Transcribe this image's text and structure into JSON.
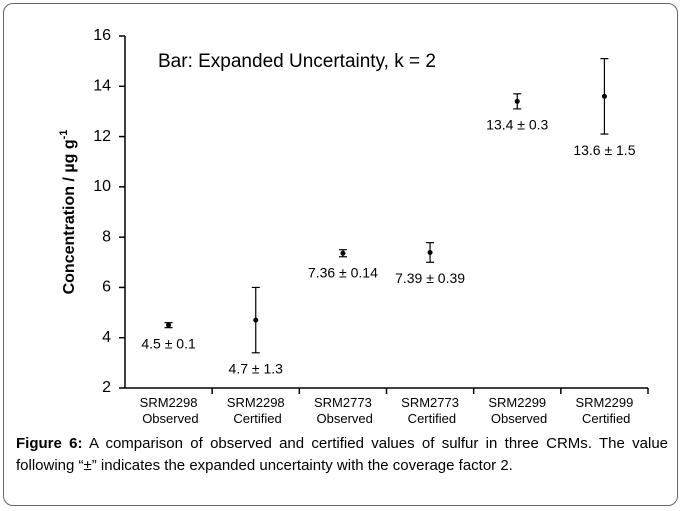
{
  "chart_data": {
    "type": "errorbar",
    "annotation": "Bar: Expanded Uncertainty, k = 2",
    "y_label": "Concentration / µg g",
    "y_label_superscript": "-1",
    "categories": [
      "SRM2298 Observed",
      "SRM2298 Certified",
      "SRM2773 Observed",
      "SRM2773 Certified",
      "SRM2299 Observed",
      "SRM2299 Certified"
    ],
    "values": [
      4.5,
      4.7,
      7.36,
      7.39,
      13.4,
      13.6
    ],
    "errors": [
      0.1,
      1.3,
      0.14,
      0.39,
      0.3,
      1.5
    ],
    "value_labels": [
      "4.5 ± 0.1",
      "4.7 ± 1.3",
      "7.36 ± 0.14",
      "7.39 ± 0.39",
      "13.4 ± 0.3",
      "13.6 ± 1.5"
    ],
    "color": "#000000",
    "ylim": [
      2,
      16
    ],
    "yticks": [
      2,
      4,
      6,
      8,
      10,
      12,
      14,
      16
    ],
    "grid": false
  },
  "caption": {
    "label": "Figure 6:",
    "text": "A comparison of observed and certified values of sulfur in three CRMs. The value following “±” indicates the expanded uncertainty with the coverage factor 2."
  }
}
